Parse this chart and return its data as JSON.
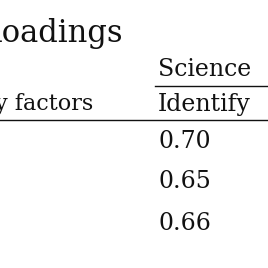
{
  "title_partial": "loadings",
  "col_group": "Science",
  "col_sub": "Identify",
  "row_label_partial": "y factors",
  "values": [
    "0.70",
    "0.65",
    "0.66"
  ],
  "bg_color": "#ffffff",
  "text_color": "#111111",
  "font_size_title": 22,
  "font_size_header": 17,
  "font_size_values": 17,
  "font_size_rowlabel": 16
}
